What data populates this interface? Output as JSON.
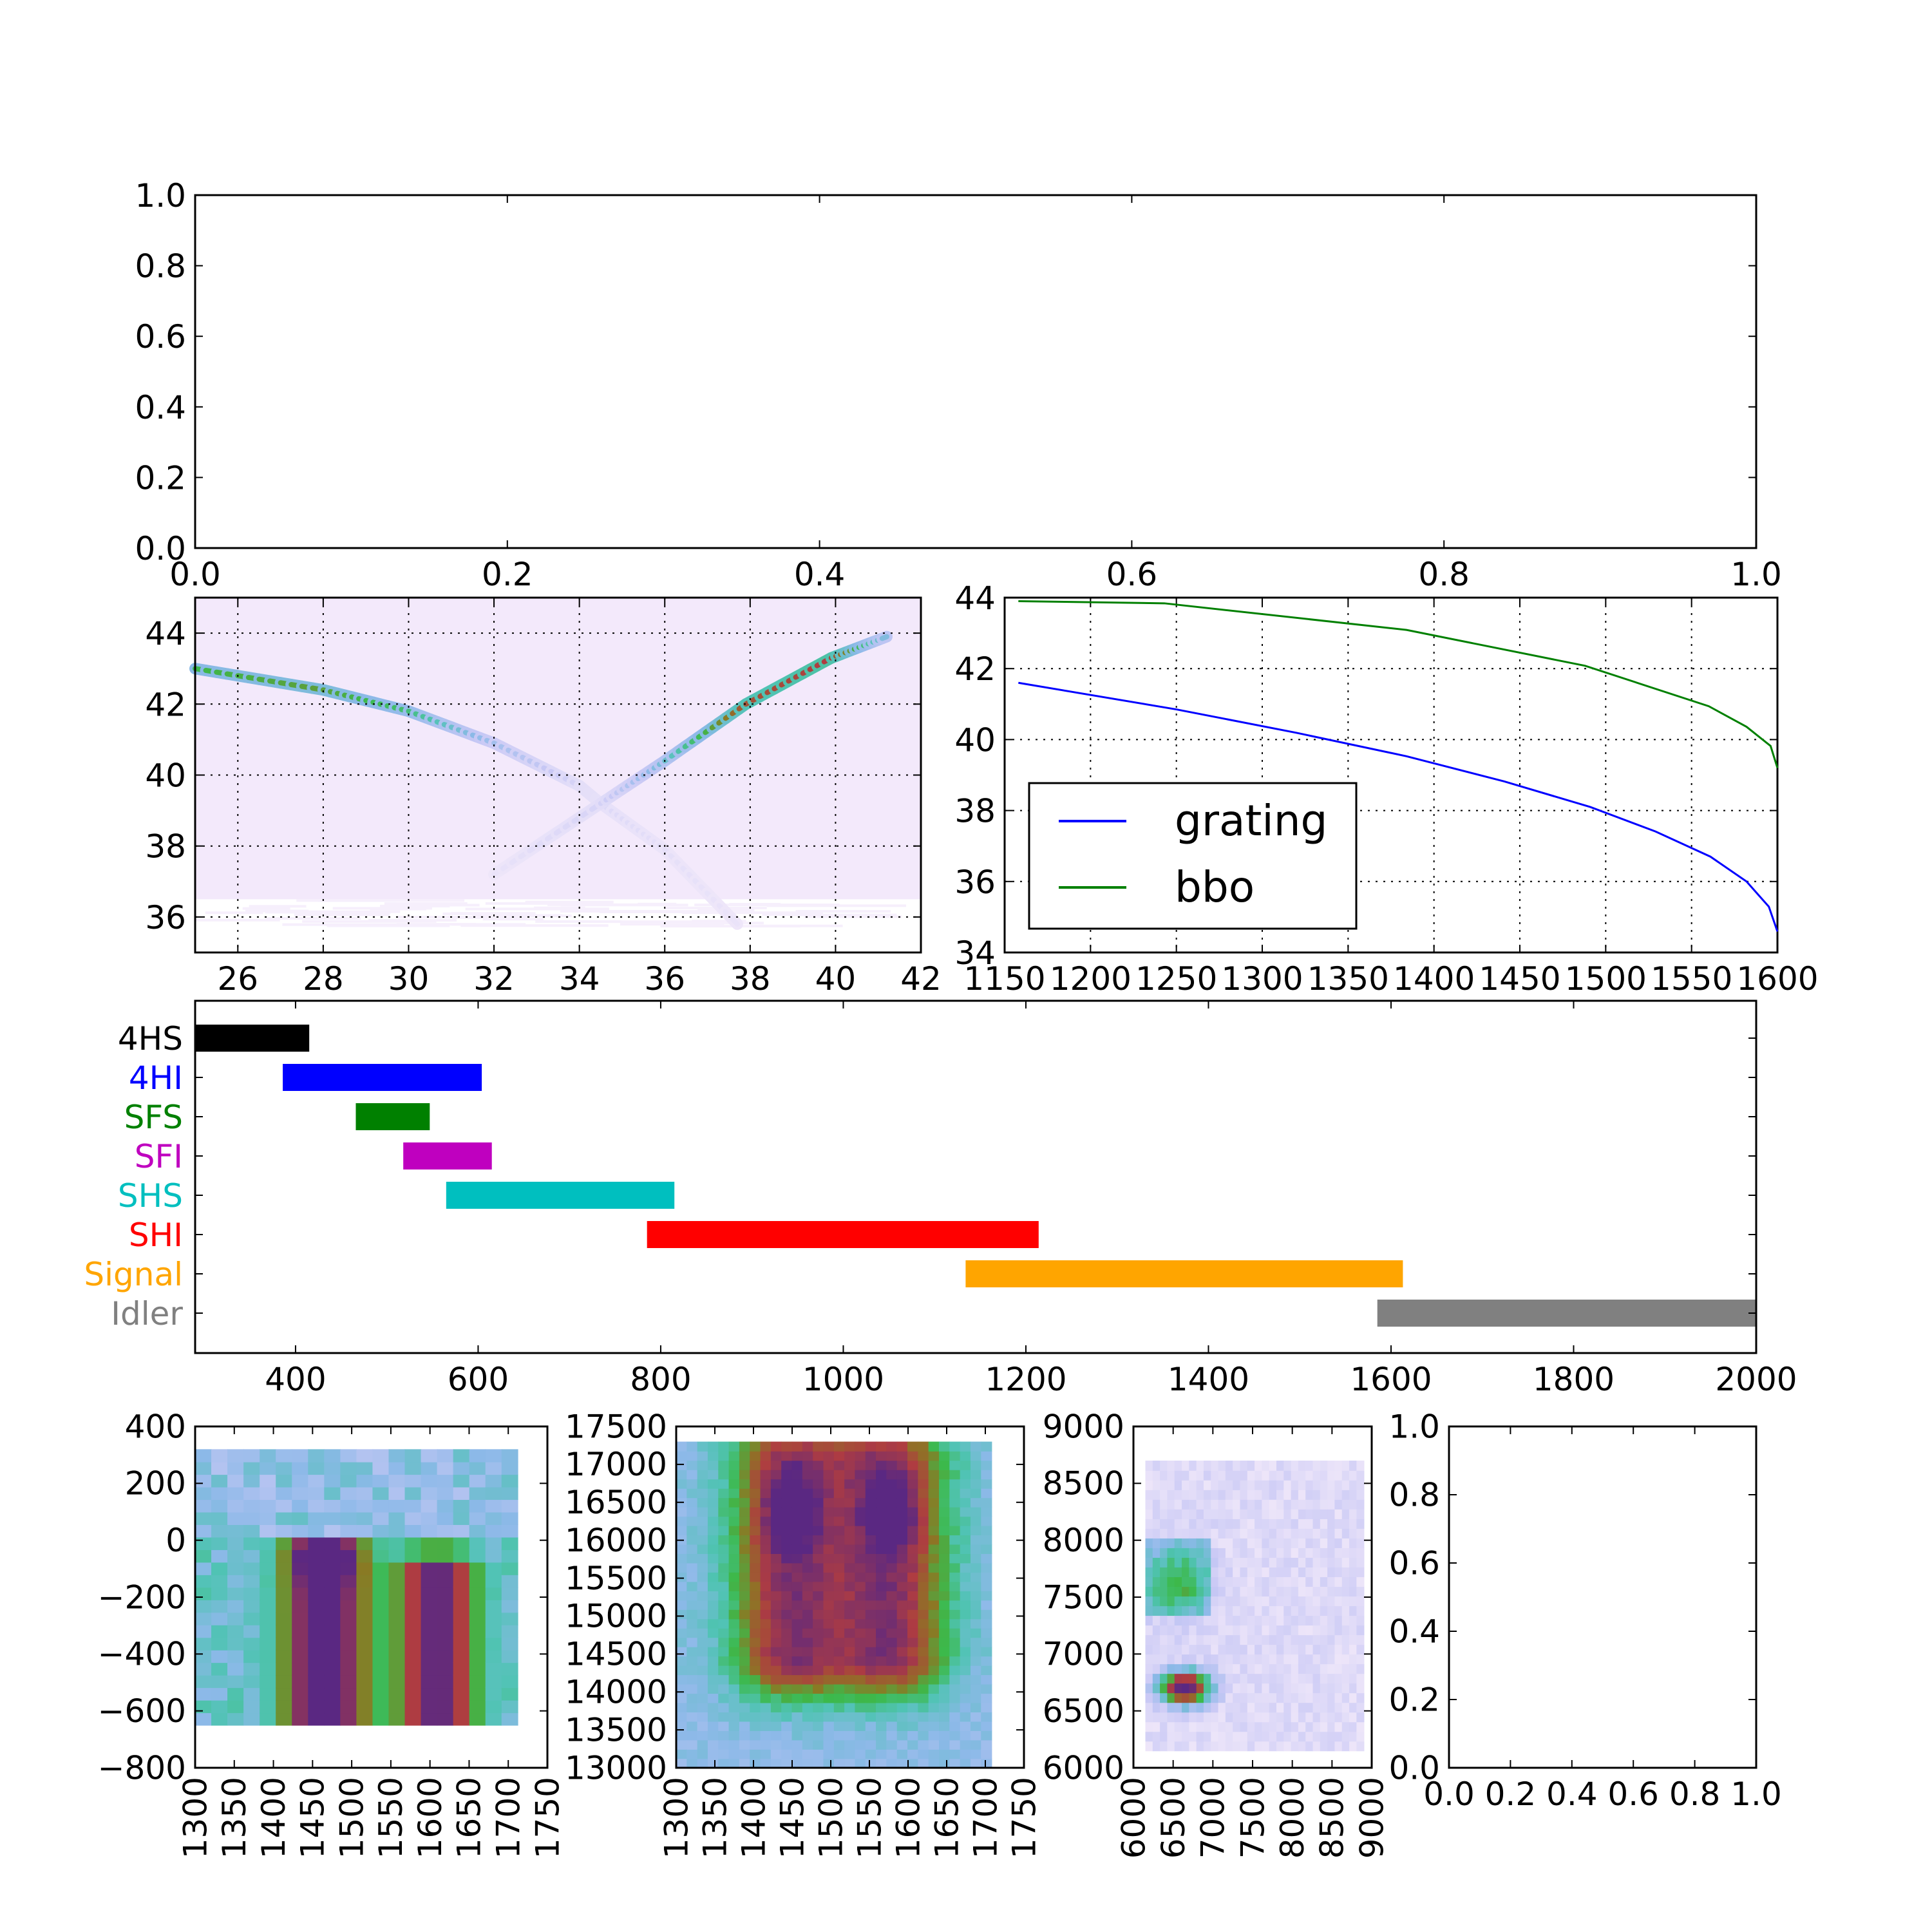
{
  "chart_data": [
    {
      "type": "line",
      "panel": "top-empty",
      "xlim": [
        0,
        1
      ],
      "ylim": [
        0,
        1
      ],
      "xticks": [
        "0.0",
        "0.2",
        "0.4",
        "0.6",
        "0.8",
        "1.0"
      ],
      "yticks": [
        "0.0",
        "0.2",
        "0.4",
        "0.6",
        "0.8",
        "1.0"
      ],
      "series": []
    },
    {
      "type": "heatmap",
      "panel": "angle-map",
      "xlim": [
        25,
        42
      ],
      "ylim": [
        35,
        45
      ],
      "xticks": [
        "26",
        "28",
        "30",
        "32",
        "34",
        "36",
        "38",
        "40",
        "42"
      ],
      "yticks": [
        "36",
        "38",
        "40",
        "42",
        "44"
      ],
      "grid": true,
      "ridges": [
        {
          "x": [
            25,
            28,
            30,
            32,
            34,
            34.5,
            36,
            37.7
          ],
          "y": [
            43.0,
            42.4,
            41.8,
            40.9,
            39.7,
            39.2,
            37.9,
            35.8
          ],
          "intensity": [
            0.55,
            0.6,
            0.5,
            0.25,
            0.1,
            0.08,
            0.05,
            0.03
          ]
        },
        {
          "x": [
            32,
            34.5,
            36,
            37.9,
            39.9,
            41.2
          ],
          "y": [
            37.2,
            39.2,
            40.4,
            42.0,
            43.3,
            43.9
          ],
          "intensity": [
            0.03,
            0.1,
            0.35,
            0.75,
            0.8,
            0.3
          ]
        }
      ]
    },
    {
      "type": "line",
      "panel": "phase-matching",
      "xlim": [
        1150,
        1600
      ],
      "ylim": [
        34,
        44
      ],
      "xticks": [
        "1150",
        "1200",
        "1250",
        "1300",
        "1350",
        "1400",
        "1450",
        "1500",
        "1550",
        "1600"
      ],
      "yticks": [
        "34",
        "36",
        "38",
        "40",
        "42",
        "44"
      ],
      "grid": true,
      "legend": "center-left",
      "series": [
        {
          "name": "grating",
          "color": "#0000ff",
          "x": [
            1158,
            1250,
            1320,
            1384,
            1441,
            1491,
            1529,
            1561,
            1582,
            1595,
            1600
          ],
          "y": [
            41.6,
            40.85,
            40.19,
            39.53,
            38.82,
            38.1,
            37.41,
            36.7,
            36.0,
            35.29,
            34.59
          ]
        },
        {
          "name": "bbo",
          "color": "#008000",
          "x": [
            1158,
            1243,
            1384,
            1488,
            1560,
            1582,
            1596,
            1600
          ],
          "y": [
            43.9,
            43.84,
            43.09,
            42.08,
            40.94,
            40.36,
            39.82,
            39.2
          ]
        }
      ]
    },
    {
      "type": "bar",
      "panel": "wavelength-ranges",
      "orientation": "horizontal",
      "xlim": [
        290,
        2000
      ],
      "xticks": [
        "400",
        "600",
        "800",
        "1000",
        "1200",
        "1400",
        "1600",
        "1800",
        "2000"
      ],
      "categories": [
        "4HS",
        "4HI",
        "SFS",
        "SFI",
        "SHS",
        "SHI",
        "Signal",
        "Idler"
      ],
      "ranges": [
        [
          290,
          415
        ],
        [
          386,
          604
        ],
        [
          466,
          547
        ],
        [
          518,
          615
        ],
        [
          565,
          815
        ],
        [
          785,
          1214
        ],
        [
          1134,
          1613
        ],
        [
          1585,
          2000
        ]
      ],
      "colors": [
        "#000000",
        "#0000ff",
        "#008000",
        "#bf00bf",
        "#00bfbf",
        "#ff0000",
        "#ffa500",
        "#808080"
      ]
    },
    {
      "type": "heatmap",
      "panel": "spectrum-1",
      "xlim": [
        1300,
        1750
      ],
      "ylim": [
        -800,
        400
      ],
      "xticks": [
        "1300",
        "1350",
        "1400",
        "1450",
        "1500",
        "1550",
        "1600",
        "1650",
        "1700",
        "1750"
      ],
      "yticks": [
        "−800",
        "−600",
        "−400",
        "−200",
        "0",
        "200",
        "400"
      ]
    },
    {
      "type": "heatmap",
      "panel": "spectrum-2",
      "xlim": [
        1300,
        1750
      ],
      "ylim": [
        13000,
        17500
      ],
      "xticks": [
        "1300",
        "1350",
        "1400",
        "1450",
        "1500",
        "1550",
        "1600",
        "1650",
        "1700",
        "1750"
      ],
      "yticks": [
        "13000",
        "13500",
        "14000",
        "14500",
        "15000",
        "15500",
        "16000",
        "16500",
        "17000",
        "17500"
      ]
    },
    {
      "type": "heatmap",
      "panel": "spectrum-3",
      "xlim": [
        6000,
        9000
      ],
      "ylim": [
        6000,
        9000
      ],
      "xticks": [
        "6000",
        "6500",
        "7000",
        "7500",
        "8000",
        "8500",
        "9000"
      ],
      "yticks": [
        "6000",
        "6500",
        "7000",
        "7500",
        "8000",
        "8500",
        "9000"
      ]
    },
    {
      "type": "line",
      "panel": "bottom-empty",
      "xlim": [
        0,
        1
      ],
      "ylim": [
        0,
        1
      ],
      "xticks": [
        "0.0",
        "0.2",
        "0.4",
        "0.6",
        "0.8",
        "1.0"
      ],
      "yticks": [
        "0.0",
        "0.2",
        "0.4",
        "0.6",
        "0.8",
        "1.0"
      ],
      "series": []
    }
  ]
}
